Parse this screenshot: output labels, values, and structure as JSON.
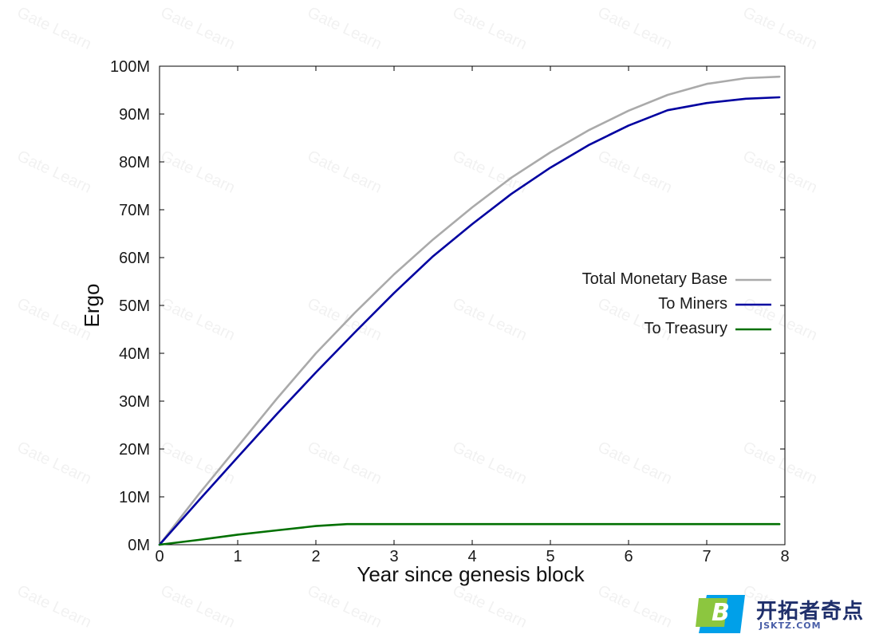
{
  "chart_data": {
    "type": "line",
    "title": "",
    "xlabel": "Year since genesis block",
    "ylabel": "Ergo",
    "xlim": [
      0,
      8
    ],
    "ylim": [
      0,
      100000000
    ],
    "xticks": [
      0,
      1,
      2,
      3,
      4,
      5,
      6,
      7,
      8
    ],
    "yticks": [
      0,
      10000000,
      20000000,
      30000000,
      40000000,
      50000000,
      60000000,
      70000000,
      80000000,
      90000000,
      100000000
    ],
    "xtick_labels": [
      "0",
      "1",
      "2",
      "3",
      "4",
      "5",
      "6",
      "7",
      "8"
    ],
    "ytick_labels": [
      "0M",
      "10M",
      "20M",
      "30M",
      "40M",
      "50M",
      "60M",
      "70M",
      "80M",
      "90M",
      "100M"
    ],
    "grid": false,
    "legend": "center-right",
    "series": [
      {
        "name": "Total Monetary Base",
        "color": "#aaaaaa",
        "x": [
          0,
          0.5,
          1,
          1.5,
          2,
          2.5,
          3,
          3.5,
          4,
          4.5,
          5,
          5.5,
          6,
          6.5,
          7,
          7.5,
          7.93
        ],
        "y": [
          0,
          10500000,
          20500000,
          30500000,
          40000000,
          48500000,
          56500000,
          63800000,
          70500000,
          76700000,
          82000000,
          86700000,
          90700000,
          94000000,
          96300000,
          97500000,
          97800000
        ]
      },
      {
        "name": "To Miners",
        "color": "#0000a0",
        "x": [
          0,
          0.5,
          1,
          1.5,
          2,
          2.5,
          3,
          3.5,
          4,
          4.5,
          5,
          5.5,
          6,
          6.5,
          7,
          7.5,
          7.93
        ],
        "y": [
          0,
          9200000,
          18300000,
          27300000,
          36000000,
          44400000,
          52600000,
          60300000,
          67000000,
          73300000,
          78800000,
          83600000,
          87600000,
          90800000,
          92300000,
          93200000,
          93500000
        ]
      },
      {
        "name": "To Treasury",
        "color": "#007000",
        "x": [
          0,
          0.5,
          1,
          1.5,
          2,
          2.4,
          3,
          4,
          5,
          6,
          7,
          7.93
        ],
        "y": [
          0,
          1000000,
          2100000,
          3000000,
          3900000,
          4300000,
          4300000,
          4300000,
          4300000,
          4300000,
          4300000,
          4300000
        ]
      }
    ]
  },
  "branding": {
    "watermark_text": "Gate Learn",
    "logo_badge_letter": "B",
    "logo_name": "开拓者奇点",
    "logo_sub": "JSKTZ.COM",
    "logo_colors": {
      "green": "#8cc63f",
      "blue": "#00a0e9"
    }
  }
}
